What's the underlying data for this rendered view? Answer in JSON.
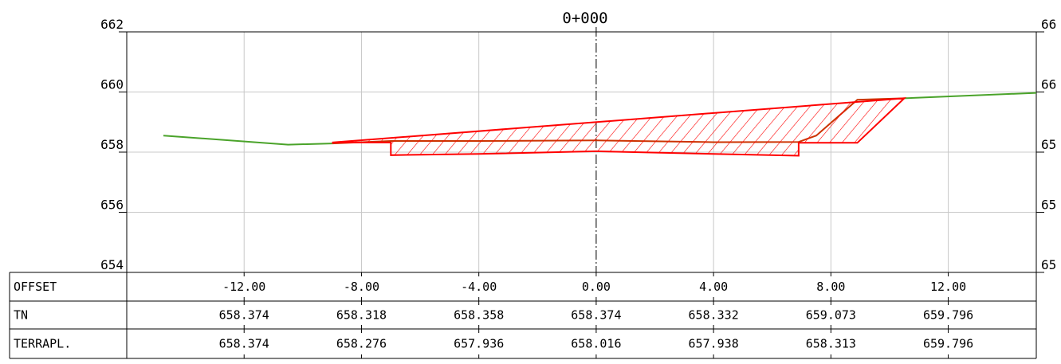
{
  "chart_data": {
    "type": "line",
    "title": "0+000",
    "xlabel": "",
    "ylabel": "",
    "xlim": [
      -16.0,
      15.0
    ],
    "ylim": [
      654,
      662
    ],
    "y_ticks_left": [
      "654",
      "656",
      "658",
      "660",
      "662"
    ],
    "y_ticks_right": [
      "65",
      "65",
      "65",
      "66",
      "66"
    ],
    "grid": true,
    "series": [
      {
        "name": "",
        "color": "#4aa32a",
        "points": [
          {
            "x": -14.75,
            "y": 658.55
          },
          {
            "x": -10.5,
            "y": 658.25
          },
          {
            "x": -9.0,
            "y": 658.29
          }
        ]
      },
      {
        "name": "",
        "color": "#4aa32a",
        "points": [
          {
            "x": 10.5,
            "y": 659.79
          },
          {
            "x": 15.0,
            "y": 659.97
          }
        ]
      },
      {
        "name": "",
        "color": "#cc3300",
        "points": [
          {
            "x": -9.0,
            "y": 658.29
          },
          {
            "x": -7.0,
            "y": 658.37
          },
          {
            "x": -4.0,
            "y": 658.37
          },
          {
            "x": 0.0,
            "y": 658.39
          },
          {
            "x": 4.0,
            "y": 658.33
          },
          {
            "x": 6.9,
            "y": 658.34
          },
          {
            "x": 7.5,
            "y": 658.55
          },
          {
            "x": 8.9,
            "y": 659.74
          },
          {
            "x": 10.5,
            "y": 659.79
          }
        ]
      },
      {
        "name": "",
        "color": "#ff0000",
        "fill": "hatch",
        "points": [
          {
            "x": -9.0,
            "y": 658.32
          },
          {
            "x": -7.0,
            "y": 658.32
          },
          {
            "x": -7.0,
            "y": 657.9
          },
          {
            "x": -4.0,
            "y": 657.94
          },
          {
            "x": 0.0,
            "y": 658.03
          },
          {
            "x": 4.0,
            "y": 657.94
          },
          {
            "x": 6.9,
            "y": 657.88
          },
          {
            "x": 6.9,
            "y": 658.31
          },
          {
            "x": 8.9,
            "y": 658.31
          },
          {
            "x": 10.5,
            "y": 659.79
          }
        ]
      }
    ],
    "centerline_x": 0.0,
    "x_grid": [
      -12.0,
      -8.0,
      -4.0,
      0.0,
      4.0,
      8.0,
      12.0
    ],
    "table": {
      "columns_x": [
        -12.0,
        -8.0,
        -4.0,
        0.0,
        4.0,
        8.0,
        12.0
      ],
      "rows": [
        {
          "label": "OFFSET",
          "values": [
            "-12.00",
            "-8.00",
            "-4.00",
            "0.00",
            "4.00",
            "8.00",
            "12.00"
          ]
        },
        {
          "label": "TN",
          "values": [
            "658.374",
            "658.318",
            "658.358",
            "658.374",
            "658.332",
            "659.073",
            "659.796"
          ]
        },
        {
          "label": "TERRAPL.",
          "values": [
            "658.374",
            "658.276",
            "657.936",
            "658.016",
            "657.938",
            "658.313",
            "659.796"
          ]
        }
      ]
    }
  }
}
